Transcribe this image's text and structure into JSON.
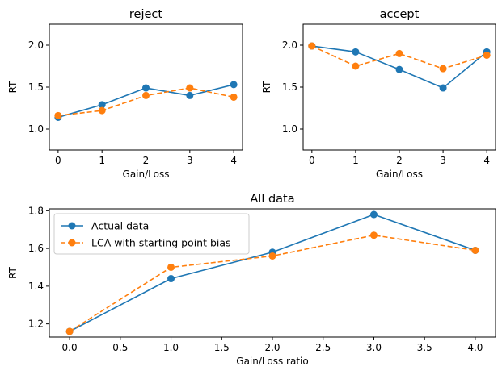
{
  "chart_data": [
    {
      "type": "line",
      "title": "reject",
      "xlabel": "Gain/Loss",
      "ylabel": "RT",
      "x": [
        0,
        1,
        2,
        3,
        4
      ],
      "xlim": [
        -0.2,
        4.2
      ],
      "ylim": [
        0.75,
        2.25
      ],
      "xticks": [
        0,
        1,
        2,
        3,
        4
      ],
      "xtick_labels": [
        "0",
        "1",
        "2",
        "3",
        "4"
      ],
      "yticks": [
        1.0,
        1.5,
        2.0
      ],
      "ytick_labels": [
        "1.0",
        "1.5",
        "2.0"
      ],
      "grid": false,
      "series": [
        {
          "values": [
            1.14,
            1.29,
            1.49,
            1.4,
            1.53
          ],
          "color": "#1f77b4",
          "style": "solid"
        },
        {
          "values": [
            1.16,
            1.22,
            1.4,
            1.49,
            1.38
          ],
          "color": "#ff7f0e",
          "style": "dashed"
        }
      ]
    },
    {
      "type": "line",
      "title": "accept",
      "xlabel": "Gain/Loss",
      "ylabel": "RT",
      "x": [
        0,
        1,
        2,
        3,
        4
      ],
      "xlim": [
        -0.2,
        4.2
      ],
      "ylim": [
        0.75,
        2.25
      ],
      "xticks": [
        0,
        1,
        2,
        3,
        4
      ],
      "xtick_labels": [
        "0",
        "1",
        "2",
        "3",
        "4"
      ],
      "yticks": [
        1.0,
        1.5,
        2.0
      ],
      "ytick_labels": [
        "1.0",
        "1.5",
        "2.0"
      ],
      "grid": false,
      "series": [
        {
          "values": [
            1.99,
            1.92,
            1.71,
            1.49,
            1.92
          ],
          "color": "#1f77b4",
          "style": "solid"
        },
        {
          "values": [
            1.99,
            1.75,
            1.9,
            1.72,
            1.88
          ],
          "color": "#ff7f0e",
          "style": "dashed"
        }
      ]
    },
    {
      "type": "line",
      "title": "All data",
      "xlabel": "Gain/Loss ratio",
      "ylabel": "RT",
      "x": [
        0,
        1,
        2,
        3,
        4
      ],
      "xlim": [
        -0.2,
        4.2
      ],
      "ylim": [
        1.13,
        1.81
      ],
      "xticks": [
        0,
        0.5,
        1,
        1.5,
        2,
        2.5,
        3,
        3.5,
        4
      ],
      "xtick_labels": [
        "0.0",
        "0.5",
        "1.0",
        "1.5",
        "2.0",
        "2.5",
        "3.0",
        "3.5",
        "4.0"
      ],
      "yticks": [
        1.2,
        1.4,
        1.6,
        1.8
      ],
      "ytick_labels": [
        "1.2",
        "1.4",
        "1.6",
        "1.8"
      ],
      "grid": false,
      "legend": "top-left",
      "series": [
        {
          "name": "Actual data",
          "values": [
            1.16,
            1.44,
            1.58,
            1.78,
            1.59
          ],
          "color": "#1f77b4",
          "style": "solid"
        },
        {
          "name": "LCA with starting point bias",
          "values": [
            1.16,
            1.5,
            1.56,
            1.67,
            1.59
          ],
          "color": "#ff7f0e",
          "style": "dashed"
        }
      ]
    }
  ]
}
